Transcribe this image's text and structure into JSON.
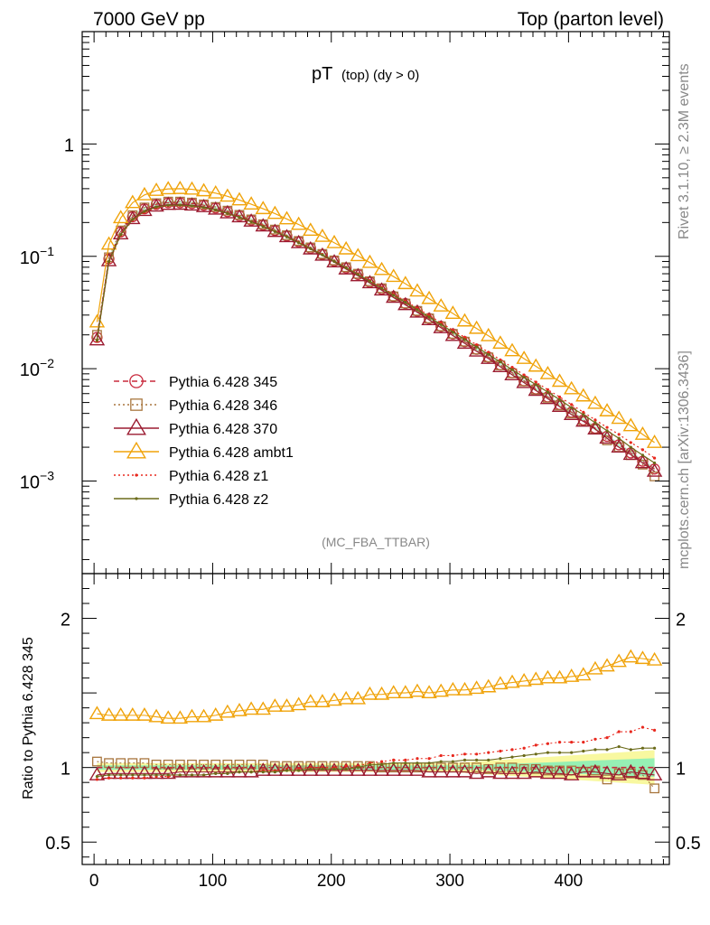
{
  "header": {
    "left": "7000 GeV pp",
    "right": "Top (parton level)"
  },
  "side_labels": {
    "rivet": "Rivet 3.1.10, ≥ 2.3M events",
    "mcplots": "mcplots.cern.ch [arXiv:1306.3436]"
  },
  "chart_data": [
    {
      "type": "line",
      "panel": "main",
      "title_main": "pT",
      "title_sub": "(top) (dy > 0)",
      "watermark": "(MC_FBA_TTBAR)",
      "x_scale": "linear",
      "y_scale": "log",
      "xlim": [
        -10,
        485
      ],
      "ylim": [
        0.00015,
        10
      ],
      "y_ticks": [
        0.001,
        0.01,
        0.1,
        1
      ],
      "y_tick_labels": [
        {
          "base": "10",
          "exp": "−3"
        },
        {
          "base": "10",
          "exp": "−2"
        },
        {
          "base": "10",
          "exp": "−1"
        },
        {
          "base": "1",
          "exp": ""
        }
      ],
      "legend_position": "lower-left",
      "x": [
        2.5,
        12.5,
        22.5,
        32.5,
        42.5,
        52.5,
        62.5,
        72.5,
        82.5,
        92.5,
        102.5,
        112.5,
        122.5,
        132.5,
        142.5,
        152.5,
        162.5,
        172.5,
        182.5,
        192.5,
        202.5,
        212.5,
        222.5,
        232.5,
        242.5,
        252.5,
        262.5,
        272.5,
        282.5,
        292.5,
        302.5,
        312.5,
        322.5,
        332.5,
        342.5,
        352.5,
        362.5,
        372.5,
        382.5,
        392.5,
        402.5,
        412.5,
        422.5,
        432.5,
        442.5,
        452.5,
        462.5,
        472.5
      ],
      "series": [
        {
          "name": "Pythia 6.428 345",
          "color": "#c8283c",
          "marker": "circle",
          "line": "dashed",
          "values": [
            0.019,
            0.095,
            0.165,
            0.225,
            0.265,
            0.29,
            0.3,
            0.3,
            0.295,
            0.285,
            0.27,
            0.25,
            0.23,
            0.21,
            0.19,
            0.17,
            0.152,
            0.135,
            0.118,
            0.104,
            0.091,
            0.079,
            0.069,
            0.059,
            0.051,
            0.044,
            0.038,
            0.0325,
            0.028,
            0.0238,
            0.0204,
            0.0174,
            0.0149,
            0.0127,
            0.0108,
            0.0092,
            0.0078,
            0.0066,
            0.0056,
            0.0048,
            0.0041,
            0.0035,
            0.00295,
            0.0025,
            0.0021,
            0.00178,
            0.0015,
            0.00128
          ]
        },
        {
          "name": "Pythia 6.428 346",
          "color": "#a8763e",
          "marker": "square",
          "line": "dotted",
          "values": [
            0.02,
            0.098,
            0.17,
            0.232,
            0.272,
            0.297,
            0.307,
            0.307,
            0.301,
            0.29,
            0.275,
            0.255,
            0.234,
            0.213,
            0.193,
            0.173,
            0.154,
            0.137,
            0.12,
            0.105,
            0.092,
            0.08,
            0.07,
            0.06,
            0.052,
            0.044,
            0.038,
            0.0327,
            0.028,
            0.0238,
            0.0204,
            0.0174,
            0.0148,
            0.0126,
            0.0107,
            0.0091,
            0.0077,
            0.0065,
            0.0055,
            0.0047,
            0.004,
            0.0034,
            0.0029,
            0.0023,
            0.002,
            0.0017,
            0.0014,
            0.0011
          ]
        },
        {
          "name": "Pythia 6.428 370",
          "color": "#9b1b30",
          "marker": "triangle-open",
          "line": "solid",
          "values": [
            0.018,
            0.091,
            0.158,
            0.216,
            0.255,
            0.279,
            0.289,
            0.29,
            0.285,
            0.276,
            0.262,
            0.243,
            0.224,
            0.205,
            0.186,
            0.166,
            0.149,
            0.132,
            0.116,
            0.102,
            0.089,
            0.077,
            0.067,
            0.058,
            0.05,
            0.043,
            0.037,
            0.0318,
            0.0272,
            0.0231,
            0.0197,
            0.0168,
            0.0143,
            0.0123,
            0.0104,
            0.0088,
            0.0075,
            0.0064,
            0.0054,
            0.0046,
            0.0039,
            0.0034,
            0.0029,
            0.0024,
            0.002,
            0.00172,
            0.00145,
            0.00122
          ]
        },
        {
          "name": "Pythia 6.428 ambt1",
          "color": "#f0a30a",
          "marker": "triangle-open",
          "line": "solid",
          "values": [
            0.026,
            0.128,
            0.22,
            0.3,
            0.352,
            0.385,
            0.398,
            0.4,
            0.395,
            0.382,
            0.365,
            0.342,
            0.317,
            0.291,
            0.265,
            0.24,
            0.215,
            0.192,
            0.17,
            0.15,
            0.132,
            0.116,
            0.101,
            0.088,
            0.076,
            0.066,
            0.057,
            0.049,
            0.042,
            0.036,
            0.031,
            0.0265,
            0.0228,
            0.0196,
            0.0168,
            0.0144,
            0.0123,
            0.0105,
            0.009,
            0.0077,
            0.0066,
            0.0057,
            0.0049,
            0.0042,
            0.0036,
            0.0031,
            0.0026,
            0.0022
          ]
        },
        {
          "name": "Pythia 6.428 z1",
          "color": "#e8281e",
          "marker": "dot",
          "line": "dotted",
          "values": [
            0.0175,
            0.088,
            0.153,
            0.21,
            0.247,
            0.271,
            0.282,
            0.284,
            0.28,
            0.272,
            0.259,
            0.241,
            0.223,
            0.204,
            0.186,
            0.167,
            0.15,
            0.134,
            0.118,
            0.104,
            0.091,
            0.08,
            0.07,
            0.061,
            0.053,
            0.046,
            0.04,
            0.0345,
            0.0298,
            0.0256,
            0.022,
            0.019,
            0.0163,
            0.014,
            0.012,
            0.0103,
            0.0088,
            0.0076,
            0.0065,
            0.0056,
            0.0048,
            0.0041,
            0.0035,
            0.003,
            0.0026,
            0.0022,
            0.0019,
            0.0016
          ]
        },
        {
          "name": "Pythia 6.428 z2",
          "color": "#6b6b1a",
          "marker": "dot",
          "line": "solid",
          "values": [
            0.0178,
            0.09,
            0.156,
            0.213,
            0.251,
            0.275,
            0.285,
            0.286,
            0.281,
            0.272,
            0.259,
            0.241,
            0.222,
            0.203,
            0.184,
            0.166,
            0.149,
            0.132,
            0.117,
            0.103,
            0.09,
            0.079,
            0.069,
            0.06,
            0.052,
            0.045,
            0.039,
            0.0335,
            0.0288,
            0.0247,
            0.0212,
            0.0182,
            0.0156,
            0.0134,
            0.0115,
            0.0098,
            0.0084,
            0.0072,
            0.0062,
            0.0053,
            0.0045,
            0.0039,
            0.0033,
            0.0028,
            0.0024,
            0.002,
            0.0017,
            0.00145
          ]
        }
      ]
    },
    {
      "type": "line",
      "panel": "ratio",
      "ylabel": "Ratio to Pythia 6.428 345",
      "xlim": [
        -10,
        485
      ],
      "ylim": [
        0.35,
        2.3
      ],
      "x_ticks": [
        0,
        100,
        200,
        300,
        400
      ],
      "y_ticks": [
        0.5,
        1,
        2
      ],
      "y_tick_labels": [
        "0.5",
        "1",
        "2"
      ],
      "band_inner_color": "#96f0b4",
      "band_outer_color": "#f8f8a0",
      "x": [
        2.5,
        12.5,
        22.5,
        32.5,
        42.5,
        52.5,
        62.5,
        72.5,
        82.5,
        92.5,
        102.5,
        112.5,
        122.5,
        132.5,
        142.5,
        152.5,
        162.5,
        172.5,
        182.5,
        192.5,
        202.5,
        212.5,
        222.5,
        232.5,
        242.5,
        252.5,
        262.5,
        272.5,
        282.5,
        292.5,
        302.5,
        312.5,
        322.5,
        332.5,
        342.5,
        352.5,
        362.5,
        372.5,
        382.5,
        392.5,
        402.5,
        412.5,
        422.5,
        432.5,
        442.5,
        452.5,
        462.5,
        472.5
      ],
      "series": [
        {
          "name": "Pythia 6.428 345",
          "color": "#c8283c",
          "values": [
            1,
            1,
            1,
            1,
            1,
            1,
            1,
            1,
            1,
            1,
            1,
            1,
            1,
            1,
            1,
            1,
            1,
            1,
            1,
            1,
            1,
            1,
            1,
            1,
            1,
            1,
            1,
            1,
            1,
            1,
            1,
            1,
            1,
            1,
            1,
            1,
            1,
            1,
            1,
            1,
            1,
            1,
            1,
            1,
            1,
            1,
            1,
            1
          ]
        },
        {
          "name": "Pythia 6.428 346",
          "color": "#a8763e",
          "values": [
            1.04,
            1.03,
            1.03,
            1.03,
            1.03,
            1.02,
            1.02,
            1.02,
            1.02,
            1.02,
            1.02,
            1.02,
            1.02,
            1.02,
            1.02,
            1.01,
            1.01,
            1.01,
            1.01,
            1.01,
            1.01,
            1.01,
            1.01,
            1.01,
            1.0,
            1.0,
            1.0,
            1.0,
            1.0,
            1.0,
            1.0,
            1.0,
            1.0,
            0.99,
            1.0,
            1.0,
            0.99,
            0.99,
            0.98,
            0.98,
            0.98,
            0.97,
            0.98,
            0.92,
            0.96,
            0.96,
            0.95,
            0.86
          ]
        },
        {
          "name": "Pythia 6.428 370",
          "color": "#9b1b30",
          "values": [
            0.95,
            0.96,
            0.96,
            0.96,
            0.96,
            0.96,
            0.96,
            0.97,
            0.97,
            0.97,
            0.97,
            0.97,
            0.97,
            0.97,
            0.98,
            0.98,
            0.98,
            0.98,
            0.98,
            0.98,
            0.98,
            0.98,
            0.98,
            0.98,
            0.98,
            0.98,
            0.98,
            0.98,
            0.97,
            0.97,
            0.97,
            0.97,
            0.96,
            0.97,
            0.96,
            0.96,
            0.96,
            0.97,
            0.96,
            0.96,
            0.95,
            0.97,
            0.97,
            0.96,
            0.95,
            0.97,
            0.96,
            0.95
          ]
        },
        {
          "name": "Pythia 6.428 ambt1",
          "color": "#f0a30a",
          "values": [
            1.36,
            1.35,
            1.35,
            1.35,
            1.35,
            1.34,
            1.33,
            1.33,
            1.34,
            1.34,
            1.35,
            1.37,
            1.38,
            1.39,
            1.39,
            1.41,
            1.41,
            1.42,
            1.44,
            1.44,
            1.45,
            1.46,
            1.46,
            1.49,
            1.49,
            1.5,
            1.5,
            1.51,
            1.5,
            1.51,
            1.52,
            1.52,
            1.53,
            1.54,
            1.56,
            1.57,
            1.58,
            1.59,
            1.6,
            1.6,
            1.61,
            1.62,
            1.66,
            1.68,
            1.71,
            1.74,
            1.73,
            1.72
          ]
        },
        {
          "name": "Pythia 6.428 z1",
          "color": "#e8281e",
          "values": [
            0.92,
            0.93,
            0.93,
            0.93,
            0.93,
            0.94,
            0.94,
            0.95,
            0.95,
            0.95,
            0.96,
            0.96,
            0.97,
            0.97,
            0.98,
            0.98,
            0.99,
            0.99,
            1.0,
            1.0,
            1.0,
            1.01,
            1.01,
            1.03,
            1.04,
            1.05,
            1.05,
            1.06,
            1.06,
            1.08,
            1.08,
            1.09,
            1.09,
            1.1,
            1.11,
            1.12,
            1.13,
            1.15,
            1.16,
            1.17,
            1.17,
            1.17,
            1.19,
            1.2,
            1.24,
            1.24,
            1.27,
            1.25
          ]
        },
        {
          "name": "Pythia 6.428 z2",
          "color": "#6b6b1a",
          "values": [
            0.94,
            0.95,
            0.95,
            0.95,
            0.95,
            0.95,
            0.95,
            0.95,
            0.95,
            0.95,
            0.96,
            0.96,
            0.97,
            0.97,
            0.97,
            0.97,
            0.98,
            0.98,
            0.99,
            0.99,
            0.99,
            0.99,
            1.0,
            1.02,
            1.02,
            1.03,
            1.03,
            1.03,
            1.03,
            1.04,
            1.04,
            1.05,
            1.05,
            1.05,
            1.06,
            1.07,
            1.08,
            1.09,
            1.1,
            1.1,
            1.1,
            1.11,
            1.12,
            1.12,
            1.14,
            1.12,
            1.13,
            1.13
          ]
        }
      ]
    }
  ]
}
